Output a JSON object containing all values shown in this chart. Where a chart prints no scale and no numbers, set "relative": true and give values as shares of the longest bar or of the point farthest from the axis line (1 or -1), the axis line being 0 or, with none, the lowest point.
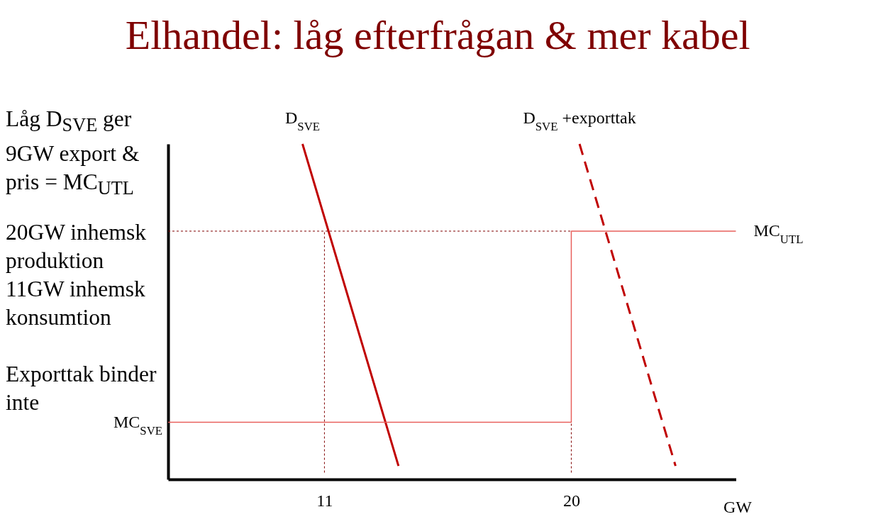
{
  "chart_data": {
    "type": "line",
    "title": "Elhandel: låg efterfrågan & mer kabel",
    "xlabel": "GW",
    "relative": true,
    "xlim": [
      5.3,
      26
    ],
    "xticks": [
      11,
      20
    ],
    "legend": false,
    "marker": "none",
    "series": [
      {
        "name": "D$_{SVE}$",
        "color": "#c00000",
        "x": [
          10.2,
          13.7
        ],
        "values": [
          1,
          0.04
        ]
      },
      {
        "name": "D$_{SVE}$ +exporttak",
        "color": "#c00000",
        "line_style": "dashed",
        "x": [
          20.3,
          23.8
        ],
        "values": [
          1,
          0.04
        ]
      },
      {
        "color": "#e8605c",
        "x": [
          5.3,
          20,
          20,
          26
        ],
        "values": [
          0.17,
          0.17,
          0.74,
          0.74
        ]
      },
      {
        "color": "#800000",
        "line_style": "dotted",
        "x": [
          5.3,
          20
        ],
        "values": [
          0.74,
          0.74
        ]
      },
      {
        "color": "#800000",
        "line_style": "dotted",
        "x": [
          11,
          11
        ],
        "values": [
          0.02,
          0.74
        ]
      },
      {
        "color": "#800000",
        "line_style": "dotted",
        "x": [
          20,
          20
        ],
        "values": [
          0.02,
          0.17
        ]
      }
    ],
    "annotations": [
      "Låg D$_{SVE}$ ger 9GW export & pris = MC$_{UTL}$",
      "20GW inhemsk produktion",
      "11GW inhemsk konsumtion",
      "Exporttak binder inte",
      {
        "text": "MC$_{SVE}$",
        "x": 5.3,
        "y": 0.17
      },
      {
        "text": "MC$_{UTL}$",
        "x": 26,
        "y": 0.74
      }
    ]
  }
}
